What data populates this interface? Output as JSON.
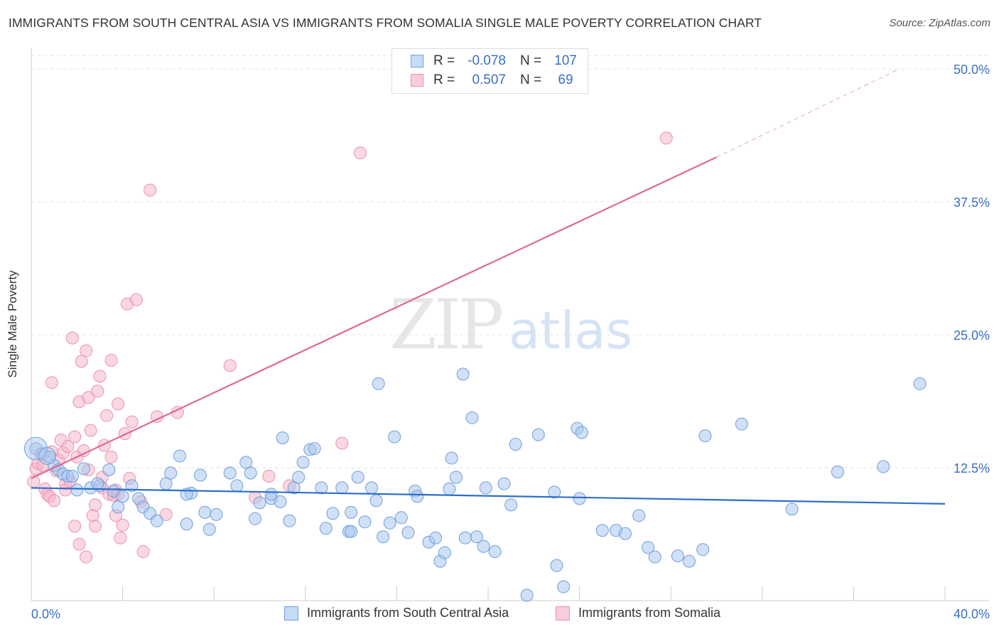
{
  "title": "IMMIGRANTS FROM SOUTH CENTRAL ASIA VS IMMIGRANTS FROM SOMALIA SINGLE MALE POVERTY CORRELATION CHART",
  "source": "Source: ZipAtlas.com",
  "watermark_zip": "ZIP",
  "watermark_atlas": "atlas",
  "legend": {
    "r_label": "R =",
    "n_label": "N =",
    "series": [
      {
        "name": "Immigrants from South Central Asia",
        "r": "-0.078",
        "n": "107"
      },
      {
        "name": "Immigrants from Somalia",
        "r": "0.507",
        "n": "69"
      }
    ]
  },
  "chart_data": {
    "type": "scatter",
    "title": "IMMIGRANTS FROM SOUTH CENTRAL ASIA VS IMMIGRANTS FROM SOMALIA SINGLE MALE POVERTY CORRELATION CHART",
    "xlabel": "",
    "ylabel": "Single Male Poverty",
    "xlim": [
      0,
      40
    ],
    "ylim": [
      0,
      50
    ],
    "x_tick_labels": [
      "0.0%",
      "40.0%"
    ],
    "y_ticks": [
      12.5,
      25.0,
      37.5,
      50.0
    ],
    "y_tick_labels": [
      "12.5%",
      "25.0%",
      "37.5%",
      "50.0%"
    ],
    "grid": true,
    "colors": {
      "blue_fill": "#a9c7ef",
      "blue_stroke": "#6f9fdc",
      "blue_line": "#2d6fca",
      "pink_fill": "#f5b8cb",
      "pink_stroke": "#ec8fae",
      "pink_line": "#e06a92",
      "tick_text": "#3a6fc4"
    },
    "series": [
      {
        "name": "Immigrants from South Central Asia",
        "color": "#6f9fdc",
        "trend": {
          "x0": 0,
          "y0": 10.6,
          "x1": 40,
          "y1": 9.1
        },
        "points": [
          [
            0.2,
            14.3
          ],
          [
            0.5,
            13.8
          ],
          [
            0.8,
            13.5
          ],
          [
            1.0,
            12.7
          ],
          [
            1.2,
            12.3
          ],
          [
            1.4,
            11.9
          ],
          [
            1.6,
            11.7
          ],
          [
            1.8,
            11.7
          ],
          [
            2.0,
            10.4
          ],
          [
            2.3,
            12.4
          ],
          [
            2.6,
            10.6
          ],
          [
            3.0,
            10.8
          ],
          [
            3.4,
            12.3
          ],
          [
            3.6,
            10.3
          ],
          [
            3.8,
            8.8
          ],
          [
            4.0,
            9.8
          ],
          [
            4.7,
            9.6
          ],
          [
            4.9,
            8.8
          ],
          [
            5.2,
            8.2
          ],
          [
            5.5,
            7.5
          ],
          [
            5.9,
            11.0
          ],
          [
            6.1,
            12.0
          ],
          [
            6.5,
            13.6
          ],
          [
            6.8,
            7.2
          ],
          [
            7.0,
            10.1
          ],
          [
            7.4,
            11.8
          ],
          [
            7.6,
            8.3
          ],
          [
            7.8,
            6.7
          ],
          [
            8.1,
            8.1
          ],
          [
            8.7,
            12.0
          ],
          [
            9.0,
            10.8
          ],
          [
            9.4,
            13.0
          ],
          [
            9.6,
            12.0
          ],
          [
            9.8,
            7.7
          ],
          [
            10.0,
            9.2
          ],
          [
            10.5,
            9.6
          ],
          [
            10.9,
            9.3
          ],
          [
            11.0,
            15.3
          ],
          [
            11.3,
            7.5
          ],
          [
            11.5,
            10.6
          ],
          [
            11.9,
            13.0
          ],
          [
            12.2,
            14.2
          ],
          [
            12.4,
            14.3
          ],
          [
            12.7,
            10.6
          ],
          [
            12.9,
            6.8
          ],
          [
            13.2,
            8.2
          ],
          [
            13.6,
            10.6
          ],
          [
            13.9,
            6.5
          ],
          [
            14.0,
            8.3
          ],
          [
            14.3,
            11.6
          ],
          [
            14.6,
            7.4
          ],
          [
            14.9,
            10.6
          ],
          [
            15.1,
            9.4
          ],
          [
            15.4,
            6.0
          ],
          [
            15.7,
            7.3
          ],
          [
            15.9,
            15.4
          ],
          [
            16.2,
            7.8
          ],
          [
            16.8,
            10.3
          ],
          [
            16.9,
            9.8
          ],
          [
            17.4,
            5.5
          ],
          [
            17.7,
            5.9
          ],
          [
            17.9,
            3.7
          ],
          [
            18.1,
            4.5
          ],
          [
            18.3,
            10.5
          ],
          [
            18.4,
            13.4
          ],
          [
            18.6,
            11.6
          ],
          [
            18.9,
            21.3
          ],
          [
            19.0,
            5.9
          ],
          [
            19.3,
            17.2
          ],
          [
            19.5,
            6.0
          ],
          [
            19.8,
            5.1
          ],
          [
            19.9,
            10.6
          ],
          [
            20.7,
            11.0
          ],
          [
            21.0,
            9.0
          ],
          [
            21.2,
            14.7
          ],
          [
            21.7,
            0.5
          ],
          [
            22.2,
            15.6
          ],
          [
            22.9,
            10.2
          ],
          [
            23.0,
            3.3
          ],
          [
            23.3,
            1.3
          ],
          [
            23.9,
            16.2
          ],
          [
            24.0,
            9.6
          ],
          [
            24.1,
            15.8
          ],
          [
            25.0,
            6.6
          ],
          [
            25.6,
            6.6
          ],
          [
            26.0,
            6.3
          ],
          [
            26.6,
            8.0
          ],
          [
            27.0,
            5.0
          ],
          [
            27.3,
            4.1
          ],
          [
            28.3,
            4.2
          ],
          [
            28.8,
            3.7
          ],
          [
            29.4,
            4.8
          ],
          [
            29.5,
            15.5
          ],
          [
            31.1,
            16.6
          ],
          [
            33.3,
            8.6
          ],
          [
            35.3,
            12.1
          ],
          [
            37.3,
            12.6
          ],
          [
            38.9,
            20.4
          ],
          [
            14.0,
            6.5
          ],
          [
            15.2,
            20.4
          ],
          [
            11.7,
            11.6
          ],
          [
            6.8,
            10.0
          ],
          [
            4.4,
            10.8
          ],
          [
            2.9,
            11.0
          ],
          [
            10.5,
            10.0
          ],
          [
            16.5,
            6.4
          ],
          [
            20.3,
            4.6
          ]
        ],
        "large_points": [
          [
            0.2,
            14.3
          ],
          [
            0.7,
            13.6
          ]
        ]
      },
      {
        "name": "Immigrants from Somalia",
        "color": "#ec8fae",
        "trend": {
          "x0": 0,
          "y0": 11.5,
          "x1": 30,
          "y1": 41.7,
          "dashed_to_x": 38,
          "dashed_to_y": 50.0
        },
        "points": [
          [
            0.1,
            11.2
          ],
          [
            0.2,
            12.4
          ],
          [
            0.3,
            12.9
          ],
          [
            0.4,
            13.8
          ],
          [
            0.5,
            12.7
          ],
          [
            0.6,
            10.5
          ],
          [
            0.7,
            10.0
          ],
          [
            0.8,
            9.8
          ],
          [
            0.9,
            14.0
          ],
          [
            0.9,
            20.5
          ],
          [
            1.0,
            9.4
          ],
          [
            1.1,
            12.2
          ],
          [
            1.2,
            13.2
          ],
          [
            1.3,
            15.1
          ],
          [
            1.4,
            13.9
          ],
          [
            1.5,
            11.0
          ],
          [
            1.5,
            10.4
          ],
          [
            1.6,
            14.5
          ],
          [
            1.7,
            11.2
          ],
          [
            1.8,
            24.7
          ],
          [
            1.9,
            7.0
          ],
          [
            1.9,
            15.4
          ],
          [
            2.0,
            13.5
          ],
          [
            2.1,
            5.3
          ],
          [
            2.1,
            18.7
          ],
          [
            2.2,
            22.5
          ],
          [
            2.3,
            14.1
          ],
          [
            2.4,
            23.5
          ],
          [
            2.4,
            4.1
          ],
          [
            2.5,
            12.3
          ],
          [
            2.5,
            19.1
          ],
          [
            2.6,
            16.0
          ],
          [
            2.7,
            8.0
          ],
          [
            2.8,
            7.0
          ],
          [
            2.8,
            9.0
          ],
          [
            2.9,
            19.7
          ],
          [
            3.0,
            21.1
          ],
          [
            3.1,
            10.6
          ],
          [
            3.1,
            11.6
          ],
          [
            3.2,
            14.6
          ],
          [
            3.3,
            17.4
          ],
          [
            3.4,
            10.0
          ],
          [
            3.5,
            22.6
          ],
          [
            3.5,
            13.5
          ],
          [
            3.6,
            9.9
          ],
          [
            3.7,
            8.0
          ],
          [
            3.7,
            10.4
          ],
          [
            3.8,
            10.0
          ],
          [
            3.8,
            18.5
          ],
          [
            3.9,
            5.9
          ],
          [
            4.0,
            7.1
          ],
          [
            4.1,
            15.7
          ],
          [
            4.2,
            27.9
          ],
          [
            4.3,
            11.5
          ],
          [
            4.4,
            16.8
          ],
          [
            4.6,
            28.3
          ],
          [
            4.8,
            9.3
          ],
          [
            4.9,
            4.6
          ],
          [
            5.2,
            38.6
          ],
          [
            5.5,
            17.3
          ],
          [
            5.9,
            8.1
          ],
          [
            6.4,
            17.7
          ],
          [
            8.7,
            22.1
          ],
          [
            9.8,
            9.7
          ],
          [
            10.4,
            11.7
          ],
          [
            11.3,
            10.8
          ],
          [
            13.6,
            14.8
          ],
          [
            14.4,
            42.1
          ],
          [
            27.8,
            43.5
          ]
        ]
      }
    ]
  }
}
